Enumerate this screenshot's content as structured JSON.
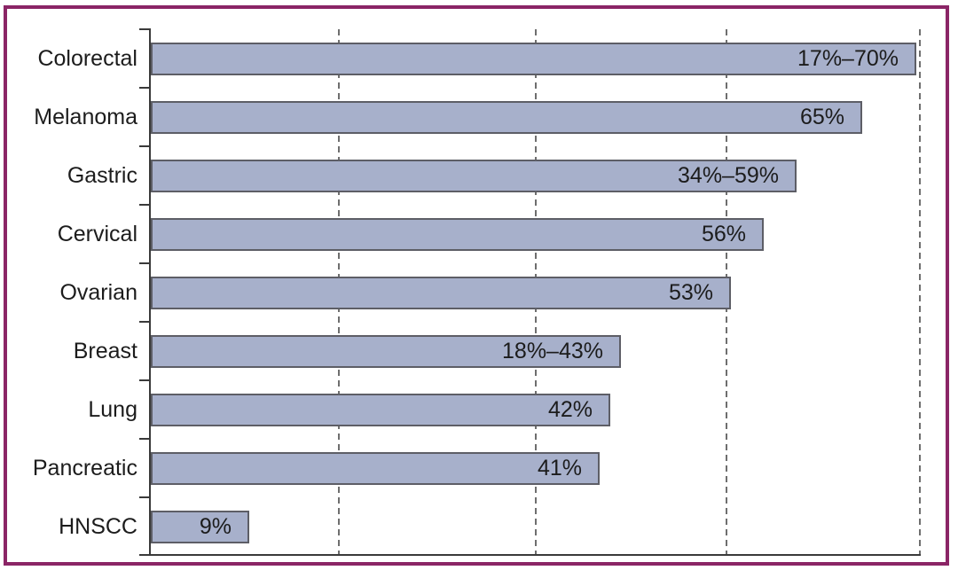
{
  "figure": {
    "frame_color": "#8b2566",
    "background": "#ffffff"
  },
  "chart_data": {
    "type": "bar",
    "orientation": "horizontal",
    "title": "",
    "xlabel": "",
    "ylabel": "",
    "categories": [
      "Colorectal",
      "Melanoma",
      "Gastric",
      "Cervical",
      "Ovarian",
      "Breast",
      "Lung",
      "Pancreatic",
      "HNSCC"
    ],
    "values": [
      70,
      65,
      59,
      56,
      53,
      43,
      42,
      41,
      9
    ],
    "bar_labels": [
      "17%–70%",
      "65%",
      "34%–59%",
      "56%",
      "53%",
      "18%–43%",
      "42%",
      "41%",
      "9%"
    ],
    "xlim": [
      0,
      70.3
    ],
    "gridline_values": [
      17.2,
      35.2,
      52.6,
      70.3
    ],
    "grid_style": "dashed-vertical",
    "x_tick_labels": [],
    "legend": null,
    "colors": {
      "bar_fill": "#a7b0cb",
      "bar_border": "#5d5e66",
      "axis": "#3a3a3a",
      "gridline": "#6e6e6e",
      "text": "#1c1c1c"
    }
  }
}
